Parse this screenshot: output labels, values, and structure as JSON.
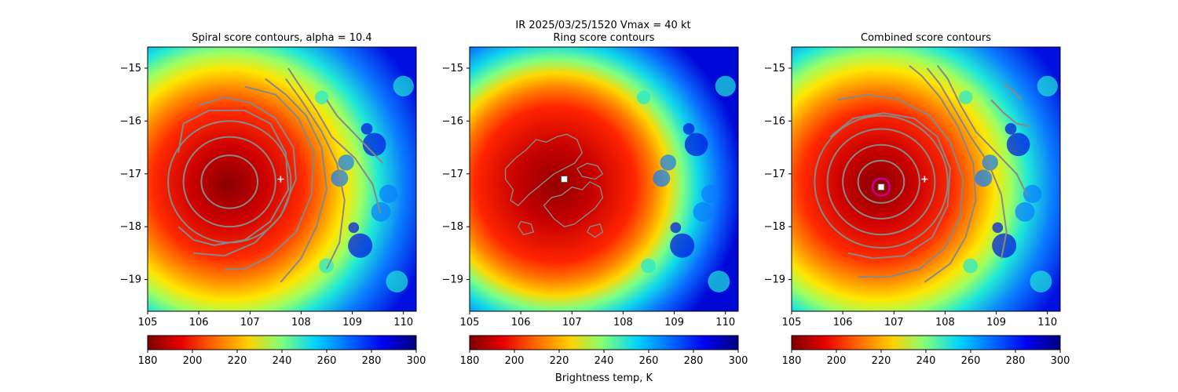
{
  "figure": {
    "suptitle": "IR  2025/03/25/1520    Vmax = 40 kt",
    "colorbar_label": "Brightness temp, K"
  },
  "chart_data": [
    {
      "type": "heatmap",
      "title": "Spiral score contours, alpha = 10.4",
      "xlim": [
        105,
        110.25
      ],
      "ylim": [
        -19.6,
        -14.6
      ],
      "xticks": [
        "105",
        "106",
        "107",
        "108",
        "109",
        "110"
      ],
      "yticks": [
        "−15",
        "−16",
        "−17",
        "−18",
        "−19"
      ],
      "colormap": "jet_r",
      "colorbar": {
        "range": [
          180,
          300
        ],
        "ticks": [
          "180",
          "200",
          "220",
          "240",
          "260",
          "280",
          "300"
        ]
      },
      "cold_core_center": [
        106.6,
        -17.2
      ],
      "markers": [
        {
          "kind": "plus",
          "x": 107.6,
          "y": -17.1,
          "color": "#ffffff"
        }
      ],
      "contours": {
        "color": "#888888",
        "closed": [
          {
            "cx": 106.6,
            "cy": -17.15,
            "rx": 0.55,
            "ry": 0.5
          },
          {
            "cx": 106.6,
            "cy": -17.15,
            "rx": 0.9,
            "ry": 0.85
          },
          {
            "cx": 106.6,
            "cy": -17.15,
            "rx": 1.2,
            "ry": 1.15
          }
        ],
        "open": [
          [
            [
              105.6,
              -18.0
            ],
            [
              105.9,
              -18.25
            ],
            [
              106.3,
              -18.35
            ],
            [
              106.9,
              -18.25
            ],
            [
              107.4,
              -17.9
            ],
            [
              107.75,
              -17.3
            ],
            [
              107.7,
              -16.6
            ],
            [
              107.4,
              -16.05
            ],
            [
              106.9,
              -15.8
            ],
            [
              106.2,
              -15.8
            ],
            [
              105.7,
              -16.05
            ],
            [
              105.6,
              -16.6
            ]
          ],
          [
            [
              105.9,
              -18.5
            ],
            [
              106.5,
              -18.55
            ],
            [
              107.1,
              -18.3
            ],
            [
              107.6,
              -17.8
            ],
            [
              107.9,
              -17.1
            ],
            [
              107.85,
              -16.5
            ],
            [
              107.5,
              -15.95
            ],
            [
              107.0,
              -15.65
            ],
            [
              106.5,
              -15.55
            ],
            [
              106.0,
              -15.7
            ]
          ],
          [
            [
              106.5,
              -18.8
            ],
            [
              106.9,
              -18.8
            ],
            [
              107.4,
              -18.55
            ],
            [
              107.9,
              -18.1
            ],
            [
              108.2,
              -17.4
            ],
            [
              108.25,
              -16.6
            ],
            [
              107.95,
              -15.95
            ],
            [
              107.5,
              -15.5
            ],
            [
              106.9,
              -15.35
            ]
          ],
          [
            [
              107.6,
              -19.05
            ],
            [
              108.0,
              -18.6
            ],
            [
              108.3,
              -18.0
            ],
            [
              108.5,
              -17.3
            ],
            [
              108.4,
              -16.5
            ],
            [
              108.1,
              -15.9
            ],
            [
              107.7,
              -15.5
            ],
            [
              107.3,
              -15.2
            ]
          ],
          [
            [
              108.5,
              -18.8
            ],
            [
              108.75,
              -18.3
            ],
            [
              108.85,
              -17.5
            ],
            [
              108.7,
              -16.8
            ],
            [
              108.4,
              -16.2
            ],
            [
              108.0,
              -15.6
            ],
            [
              107.7,
              -15.2
            ]
          ],
          [
            [
              109.55,
              -17.75
            ],
            [
              109.4,
              -17.2
            ],
            [
              109.05,
              -16.7
            ],
            [
              108.6,
              -16.3
            ],
            [
              108.3,
              -15.8
            ],
            [
              107.95,
              -15.3
            ],
            [
              107.75,
              -15.0
            ]
          ],
          [
            [
              109.6,
              -16.8
            ],
            [
              109.3,
              -16.5
            ],
            [
              109.0,
              -16.2
            ],
            [
              108.7,
              -15.9
            ],
            [
              108.5,
              -15.6
            ]
          ]
        ]
      }
    },
    {
      "type": "heatmap",
      "title": "Ring score contours",
      "xlim": [
        105,
        110.25
      ],
      "ylim": [
        -19.6,
        -14.6
      ],
      "xticks": [
        "105",
        "106",
        "107",
        "108",
        "109",
        "110"
      ],
      "yticks": [
        "−15",
        "−16",
        "−17",
        "−18",
        "−19"
      ],
      "colormap": "jet_r",
      "colorbar": {
        "range": [
          180,
          300
        ],
        "ticks": [
          "180",
          "200",
          "220",
          "240",
          "260",
          "280",
          "300"
        ]
      },
      "cold_core_center": [
        106.6,
        -17.2
      ],
      "markers": [
        {
          "kind": "square",
          "x": 106.85,
          "y": -17.1,
          "color": "#ffffff"
        }
      ],
      "contours": {
        "color": "#888888",
        "closed": [],
        "open": [
          [
            [
              105.7,
              -16.9
            ],
            [
              105.9,
              -16.7
            ],
            [
              106.1,
              -16.55
            ],
            [
              106.3,
              -16.35
            ],
            [
              106.5,
              -16.4
            ],
            [
              106.7,
              -16.3
            ],
            [
              106.9,
              -16.25
            ],
            [
              107.1,
              -16.35
            ],
            [
              107.2,
              -16.6
            ],
            [
              107.05,
              -16.8
            ],
            [
              106.85,
              -16.9
            ],
            [
              106.65,
              -17.0
            ],
            [
              106.4,
              -17.2
            ],
            [
              106.15,
              -17.4
            ],
            [
              105.95,
              -17.6
            ],
            [
              105.8,
              -17.5
            ],
            [
              105.85,
              -17.3
            ],
            [
              105.7,
              -17.1
            ],
            [
              105.7,
              -16.9
            ]
          ],
          [
            [
              106.45,
              -17.6
            ],
            [
              106.6,
              -17.45
            ],
            [
              106.8,
              -17.4
            ],
            [
              107.0,
              -17.25
            ],
            [
              107.2,
              -17.3
            ],
            [
              107.35,
              -17.15
            ],
            [
              107.55,
              -17.25
            ],
            [
              107.6,
              -17.45
            ],
            [
              107.45,
              -17.65
            ],
            [
              107.25,
              -17.8
            ],
            [
              107.05,
              -17.95
            ],
            [
              106.85,
              -18.0
            ],
            [
              106.65,
              -17.85
            ],
            [
              106.45,
              -17.6
            ]
          ],
          [
            [
              107.1,
              -16.9
            ],
            [
              107.3,
              -16.8
            ],
            [
              107.5,
              -16.85
            ],
            [
              107.6,
              -17.0
            ],
            [
              107.45,
              -17.1
            ],
            [
              107.2,
              -17.05
            ],
            [
              107.1,
              -16.9
            ]
          ],
          [
            [
              106.0,
              -17.9
            ],
            [
              106.2,
              -17.95
            ],
            [
              106.25,
              -18.1
            ],
            [
              106.05,
              -18.15
            ],
            [
              105.95,
              -18.0
            ],
            [
              106.0,
              -17.9
            ]
          ],
          [
            [
              107.35,
              -18.0
            ],
            [
              107.55,
              -17.95
            ],
            [
              107.6,
              -18.1
            ],
            [
              107.45,
              -18.2
            ],
            [
              107.3,
              -18.1
            ],
            [
              107.35,
              -18.0
            ]
          ]
        ]
      }
    },
    {
      "type": "heatmap",
      "title": "Combined score contours",
      "xlim": [
        105,
        110.25
      ],
      "ylim": [
        -19.6,
        -14.6
      ],
      "xticks": [
        "105",
        "106",
        "107",
        "108",
        "109",
        "110"
      ],
      "yticks": [
        "−15",
        "−16",
        "−17",
        "−18",
        "−19"
      ],
      "colormap": "jet_r",
      "colorbar": {
        "range": [
          180,
          300
        ],
        "ticks": [
          "180",
          "200",
          "220",
          "240",
          "260",
          "280",
          "300"
        ]
      },
      "cold_core_center": [
        106.6,
        -17.2
      ],
      "markers": [
        {
          "kind": "plus",
          "x": 107.6,
          "y": -17.1,
          "color": "#ffffff"
        },
        {
          "kind": "circle",
          "x": 106.75,
          "y": -17.25,
          "color": "#cc0099"
        },
        {
          "kind": "square",
          "x": 106.75,
          "y": -17.25,
          "color": "#ffffff"
        }
      ],
      "contours": {
        "color": "#888888",
        "closed": [
          {
            "cx": 106.75,
            "cy": -17.15,
            "rx": 0.45,
            "ry": 0.4
          },
          {
            "cx": 106.75,
            "cy": -17.15,
            "rx": 0.75,
            "ry": 0.7
          },
          {
            "cx": 106.75,
            "cy": -17.15,
            "rx": 1.05,
            "ry": 1.0
          },
          {
            "cx": 106.75,
            "cy": -17.15,
            "rx": 1.3,
            "ry": 1.25
          }
        ],
        "open": [
          [
            [
              105.75,
              -16.3
            ],
            [
              106.2,
              -15.95
            ],
            [
              106.8,
              -15.85
            ],
            [
              107.4,
              -15.95
            ],
            [
              107.85,
              -16.3
            ],
            [
              108.1,
              -16.9
            ],
            [
              108.05,
              -17.6
            ],
            [
              107.75,
              -18.2
            ],
            [
              107.2,
              -18.55
            ],
            [
              106.6,
              -18.6
            ],
            [
              106.1,
              -18.5
            ]
          ],
          [
            [
              105.9,
              -15.6
            ],
            [
              106.5,
              -15.5
            ],
            [
              107.1,
              -15.6
            ],
            [
              107.7,
              -15.9
            ],
            [
              108.1,
              -16.4
            ],
            [
              108.35,
              -17.1
            ],
            [
              108.3,
              -17.8
            ],
            [
              108.0,
              -18.4
            ],
            [
              107.5,
              -18.8
            ],
            [
              106.9,
              -18.95
            ],
            [
              106.3,
              -18.95
            ]
          ],
          [
            [
              107.6,
              -19.05
            ],
            [
              108.1,
              -18.7
            ],
            [
              108.4,
              -18.2
            ],
            [
              108.6,
              -17.5
            ],
            [
              108.55,
              -16.8
            ],
            [
              108.25,
              -16.1
            ],
            [
              107.9,
              -15.55
            ],
            [
              107.55,
              -15.15
            ],
            [
              107.3,
              -14.95
            ]
          ],
          [
            [
              109.1,
              -18.6
            ],
            [
              109.2,
              -18.1
            ],
            [
              109.1,
              -17.4
            ],
            [
              108.85,
              -16.8
            ],
            [
              108.5,
              -16.3
            ],
            [
              108.2,
              -15.8
            ],
            [
              107.9,
              -15.3
            ],
            [
              107.65,
              -15.0
            ]
          ],
          [
            [
              109.6,
              -17.4
            ],
            [
              109.4,
              -17.0
            ],
            [
              109.0,
              -16.6
            ],
            [
              108.6,
              -16.2
            ],
            [
              108.3,
              -15.7
            ],
            [
              108.05,
              -15.2
            ],
            [
              107.85,
              -14.95
            ]
          ],
          [
            [
              109.65,
              -16.1
            ],
            [
              109.4,
              -16.05
            ],
            [
              109.15,
              -15.85
            ],
            [
              108.9,
              -15.6
            ]
          ],
          [
            [
              109.5,
              -15.6
            ],
            [
              109.35,
              -15.45
            ],
            [
              109.15,
              -15.3
            ]
          ]
        ]
      }
    }
  ]
}
